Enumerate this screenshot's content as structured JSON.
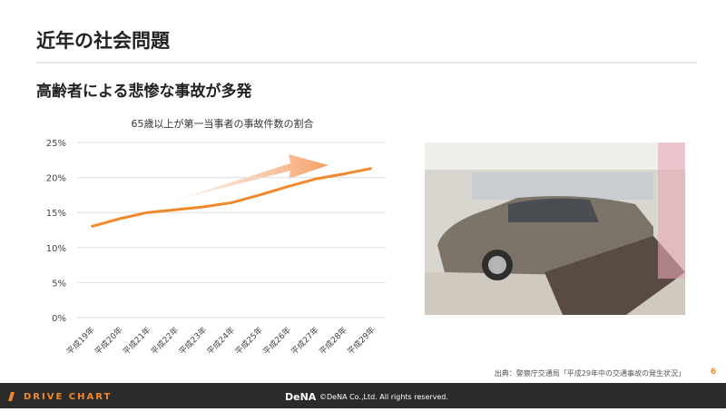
{
  "header": {
    "title": "近年の社会問題",
    "subtitle": "高齢者による悲惨な事故が多発"
  },
  "chart_data": {
    "type": "line",
    "title": "65歳以上が第一当事者の事故件数の割合",
    "categories": [
      "平成19年",
      "平成20年",
      "平成21年",
      "平成22年",
      "平成23年",
      "平成24年",
      "平成25年",
      "平成26年",
      "平成27年",
      "平成28年",
      "平成29年"
    ],
    "values": [
      13.0,
      14.1,
      15.0,
      15.4,
      15.8,
      16.4,
      17.5,
      18.7,
      19.8,
      20.5,
      21.3
    ],
    "color": "#f0882c",
    "ylim": [
      0,
      25
    ],
    "yticks": [
      {
        "value": 0,
        "label": "0%"
      },
      {
        "value": 5,
        "label": "5%"
      },
      {
        "value": 10,
        "label": "10%"
      },
      {
        "value": 15,
        "label": "15%"
      },
      {
        "value": 20,
        "label": "20%"
      },
      {
        "value": 25,
        "label": "25%"
      }
    ],
    "grid": true
  },
  "source": "出典：警察庁交通局「平成29年中の交通事故の発生状況」",
  "page_number": "6",
  "footer": {
    "logo": "DRIVE CHART",
    "brand": "DeNA",
    "copyright": "©DeNA Co.,Ltd. All rights reserved."
  }
}
